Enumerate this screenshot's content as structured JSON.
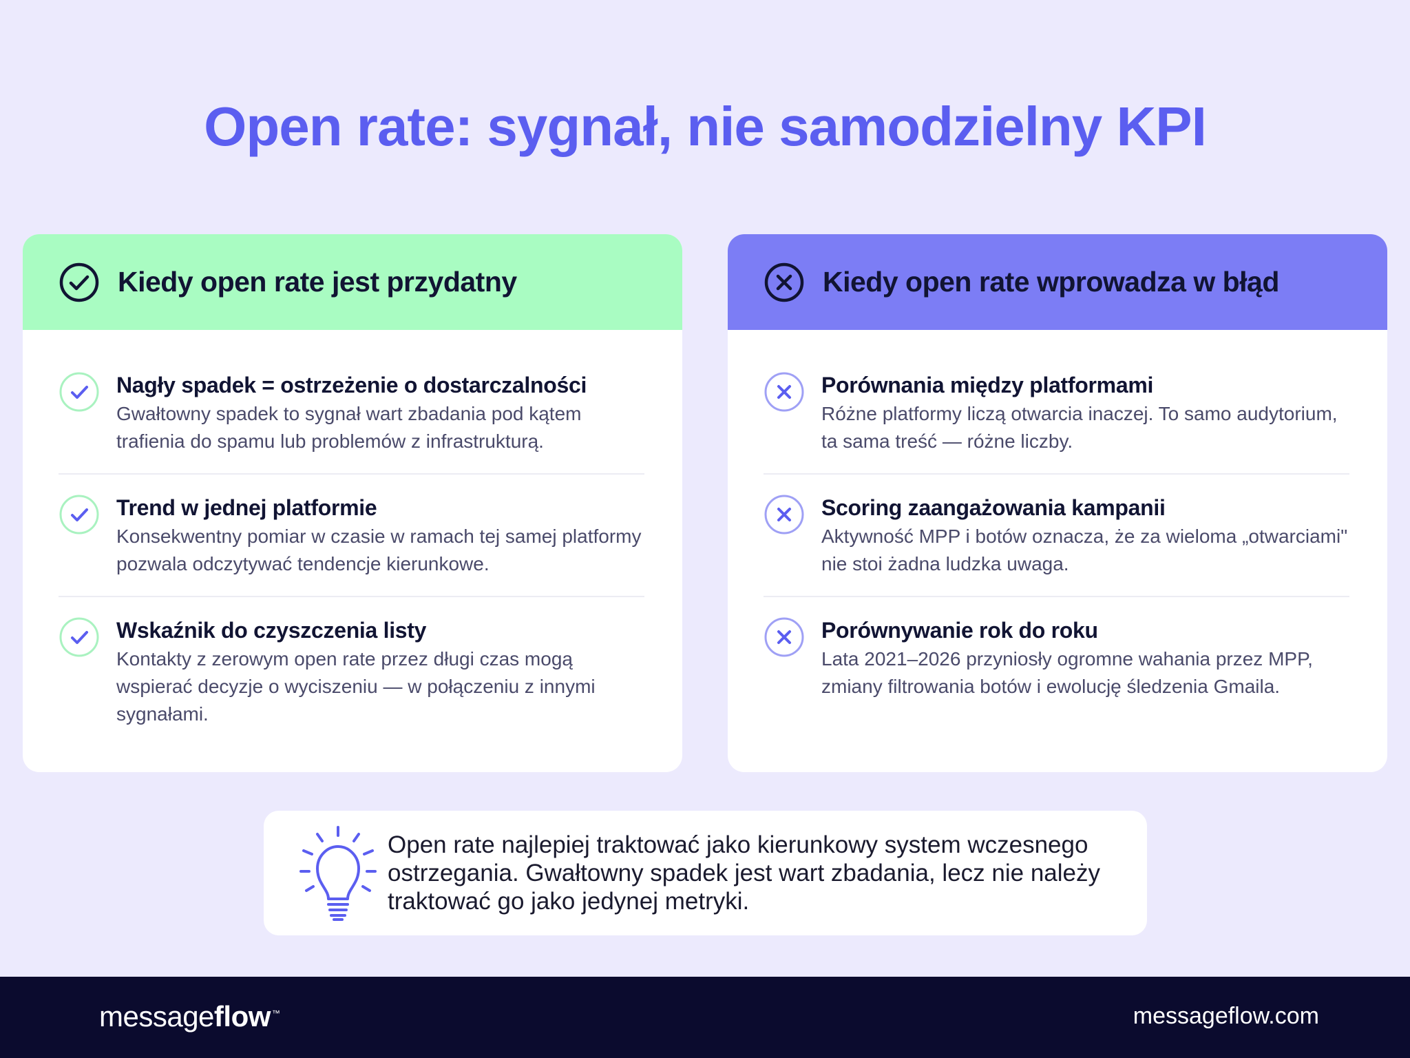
{
  "title": "Open rate: sygnał, nie samodzielny KPI",
  "colors": {
    "accent": "#5b5ef0",
    "good_header": "#a9fcc2",
    "bad_header": "#7c7df5",
    "footer": "#0b0b2e",
    "background": "#eceafd"
  },
  "left_card": {
    "header_icon": "check-circle-icon",
    "heading": "Kiedy open rate jest przydatny",
    "items": [
      {
        "icon": "check-icon",
        "title": "Nagły spadek = ostrzeżenie o dostarczalności",
        "text": "Gwałtowny spadek to sygnał wart zbadania pod kątem trafienia do spamu lub problemów z infrastrukturą."
      },
      {
        "icon": "check-icon",
        "title": "Trend w jednej platformie",
        "text": "Konsekwentny pomiar w czasie w ramach tej samej platformy pozwala odczytywać tendencje kierunkowe."
      },
      {
        "icon": "check-icon",
        "title": "Wskaźnik do czyszczenia listy",
        "text": "Kontakty z zerowym open rate przez długi czas mogą wspierać decyzje o wyciszeniu — w połączeniu z innymi sygnałami."
      }
    ]
  },
  "right_card": {
    "header_icon": "x-circle-icon",
    "heading": "Kiedy open rate wprowadza w błąd",
    "items": [
      {
        "icon": "x-icon",
        "title": "Porównania między platformami",
        "text": "Różne platformy liczą otwarcia inaczej. To samo audytorium, ta sama treść — różne liczby."
      },
      {
        "icon": "x-icon",
        "title": "Scoring zaangażowania kampanii",
        "text": "Aktywność MPP i botów oznacza, że za wieloma „otwarciami\" nie stoi żadna ludzka uwaga."
      },
      {
        "icon": "x-icon",
        "title": "Porównywanie rok do roku",
        "text": "Lata 2021–2026 przyniosły ogromne wahania przez MPP, zmiany filtrowania botów i ewolucję śledzenia Gmaila."
      }
    ]
  },
  "note": {
    "icon": "lightbulb-icon",
    "text": "Open rate najlepiej traktować jako kierunkowy system wczesnego ostrzegania. Gwałtowny spadek jest wart zbadania, lecz nie należy traktować go jako jedynej metryki."
  },
  "footer": {
    "logo_light": "message",
    "logo_bold": "flow",
    "logo_tm": "™",
    "website": "messageflow.com"
  }
}
